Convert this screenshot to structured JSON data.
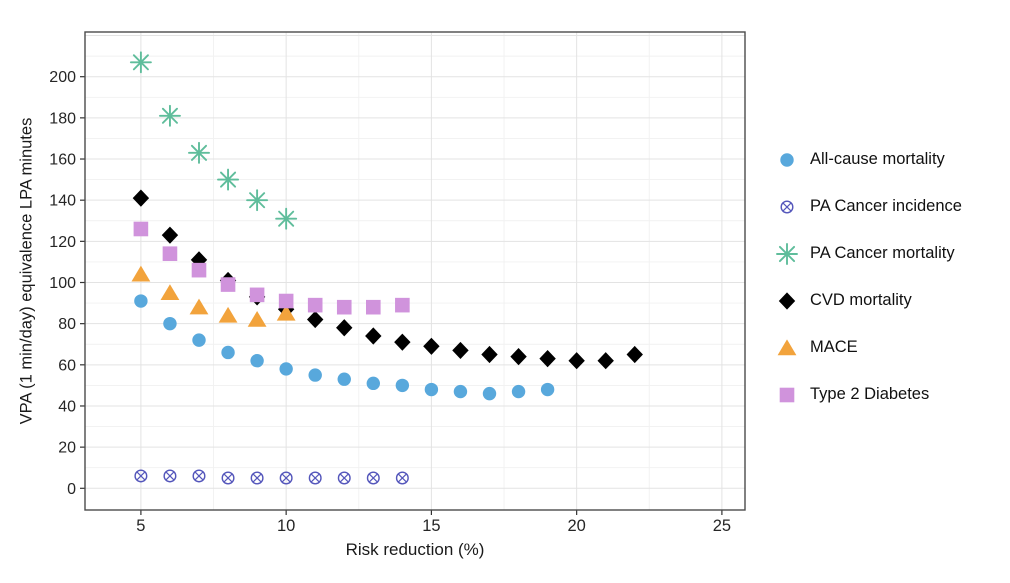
{
  "figure": {
    "background": "#ffffff",
    "panel_border_color": "#4b4b4b",
    "grid_major_color": "#e3e3e3",
    "grid_minor_color": "#f1f1f1",
    "tick_color": "#333333",
    "tick_label_color": "#262626",
    "axis_title_color": "#1a1a1a",
    "legend_text_color": "#111111"
  },
  "chart_data": {
    "type": "scatter",
    "title": "",
    "xlabel": "Risk reduction (%)",
    "ylabel": "VPA (1 min/day) equivalence LPA minutes",
    "xlim": [
      3.1,
      25.8
    ],
    "ylim": [
      -10.5,
      222
    ],
    "x_ticks": [
      5,
      10,
      15,
      20,
      25
    ],
    "y_ticks": [
      0,
      20,
      40,
      60,
      80,
      100,
      120,
      140,
      160,
      180,
      200
    ],
    "grid": "major and minor gridlines, light gray on white panel",
    "legend_position": "right-center",
    "series": [
      {
        "name": "All-cause mortality",
        "marker": "circle",
        "color": "#58A8DC",
        "x": [
          5,
          6,
          7,
          8,
          9,
          10,
          11,
          12,
          13,
          14,
          15,
          16,
          17,
          18,
          19
        ],
        "y": [
          91,
          80,
          72,
          66,
          62,
          58,
          55,
          53,
          51,
          50,
          48,
          47,
          46,
          47,
          48
        ]
      },
      {
        "name": "PA Cancer incidence",
        "marker": "circle-x",
        "color": "#5456BB",
        "x": [
          5,
          6,
          7,
          8,
          9,
          10,
          11,
          12,
          13,
          14
        ],
        "y": [
          6,
          6,
          6,
          5,
          5,
          5,
          5,
          5,
          5,
          5
        ]
      },
      {
        "name": "PA Cancer mortality",
        "marker": "asterisk",
        "color": "#5FBD9B",
        "x": [
          5,
          6,
          7,
          8,
          9,
          10
        ],
        "y": [
          207,
          181,
          163,
          150,
          140,
          131
        ]
      },
      {
        "name": "CVD mortality",
        "marker": "diamond",
        "color": "#000000",
        "x": [
          5,
          6,
          7,
          8,
          9,
          10,
          11,
          12,
          13,
          14,
          15,
          16,
          17,
          18,
          19,
          20,
          21,
          22
        ],
        "y": [
          141,
          123,
          111,
          101,
          93,
          87,
          82,
          78,
          74,
          71,
          69,
          67,
          65,
          64,
          63,
          62,
          62,
          65
        ]
      },
      {
        "name": "MACE",
        "marker": "triangle",
        "color": "#F2A33C",
        "x": [
          5,
          6,
          7,
          8,
          9,
          10
        ],
        "y": [
          104,
          95,
          88,
          84,
          82,
          85
        ]
      },
      {
        "name": "Type 2 Diabetes",
        "marker": "square",
        "color": "#D093DC",
        "x": [
          5,
          6,
          7,
          8,
          9,
          10,
          11,
          12,
          13,
          14
        ],
        "y": [
          126,
          114,
          106,
          99,
          94,
          91,
          89,
          88,
          88,
          89
        ]
      }
    ]
  }
}
